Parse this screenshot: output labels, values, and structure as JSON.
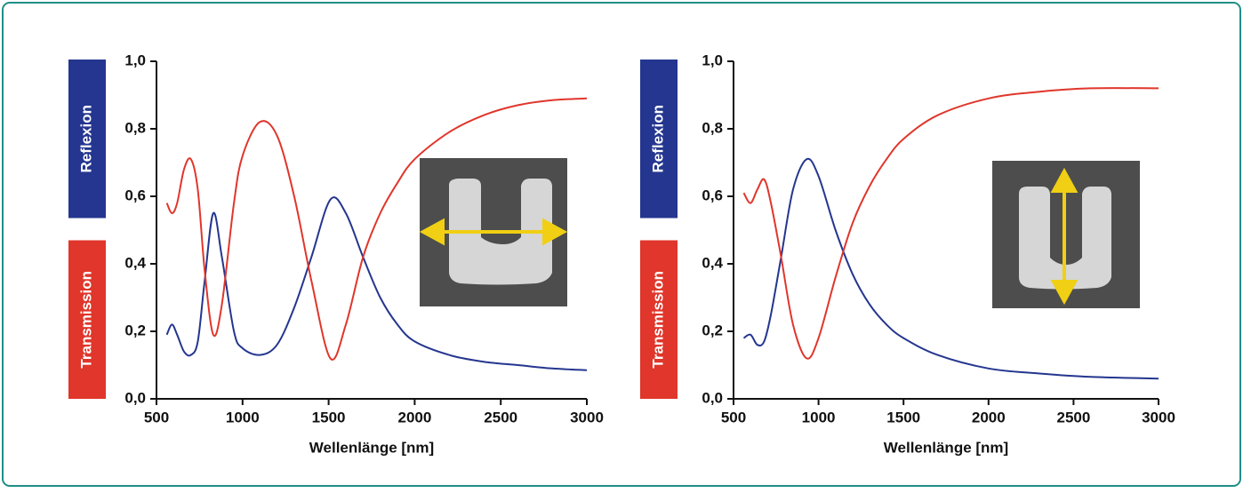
{
  "chart_data": [
    {
      "type": "line",
      "x": [
        560,
        590,
        620,
        660,
        700,
        740,
        780,
        830,
        880,
        950,
        1000,
        1100,
        1200,
        1300,
        1400,
        1510,
        1600,
        1700,
        1800,
        1900,
        2000,
        2200,
        2400,
        2600,
        2800,
        3000
      ],
      "series": [
        {
          "name": "Reflexion",
          "color": "#24368f",
          "values": [
            0.19,
            0.22,
            0.19,
            0.14,
            0.13,
            0.17,
            0.35,
            0.55,
            0.42,
            0.2,
            0.15,
            0.13,
            0.16,
            0.27,
            0.42,
            0.59,
            0.55,
            0.42,
            0.3,
            0.22,
            0.17,
            0.13,
            0.11,
            0.1,
            0.09,
            0.085
          ]
        },
        {
          "name": "Transmission",
          "color": "#e0362b",
          "values": [
            0.58,
            0.55,
            0.58,
            0.68,
            0.71,
            0.62,
            0.38,
            0.19,
            0.28,
            0.58,
            0.72,
            0.82,
            0.78,
            0.6,
            0.35,
            0.12,
            0.22,
            0.42,
            0.55,
            0.64,
            0.71,
            0.79,
            0.84,
            0.87,
            0.885,
            0.89
          ]
        }
      ],
      "xlabel": "Wellenlänge [nm]",
      "xlim": [
        500,
        3000
      ],
      "xticks": [
        500,
        1000,
        1500,
        2000,
        2500,
        3000
      ],
      "ylim": [
        0,
        1
      ],
      "yticks": [
        {
          "value": 0,
          "label": "0,0"
        },
        {
          "value": 0.2,
          "label": "0,2"
        },
        {
          "value": 0.4,
          "label": "0,4"
        },
        {
          "value": 0.6,
          "label": "0,6"
        },
        {
          "value": 0.8,
          "label": "0,8"
        },
        {
          "value": 1,
          "label": "1,0"
        }
      ]
    },
    {
      "type": "line",
      "x": [
        560,
        600,
        640,
        680,
        720,
        780,
        850,
        930,
        1000,
        1100,
        1200,
        1300,
        1400,
        1500,
        1700,
        2000,
        2300,
        2600,
        3000
      ],
      "series": [
        {
          "name": "Reflexion",
          "color": "#24368f",
          "values": [
            0.18,
            0.19,
            0.16,
            0.17,
            0.25,
            0.42,
            0.62,
            0.71,
            0.66,
            0.5,
            0.37,
            0.28,
            0.22,
            0.18,
            0.13,
            0.09,
            0.075,
            0.065,
            0.06
          ]
        },
        {
          "name": "Transmission",
          "color": "#e0362b",
          "values": [
            0.61,
            0.58,
            0.62,
            0.65,
            0.58,
            0.42,
            0.22,
            0.12,
            0.18,
            0.36,
            0.52,
            0.63,
            0.71,
            0.77,
            0.84,
            0.89,
            0.91,
            0.92,
            0.92
          ]
        }
      ],
      "xlabel": "Wellenlänge [nm]",
      "xlim": [
        500,
        3000
      ],
      "xticks": [
        500,
        1000,
        1500,
        2000,
        2500,
        3000
      ],
      "ylim": [
        0,
        1
      ],
      "yticks": [
        {
          "value": 0,
          "label": "0,0"
        },
        {
          "value": 0.2,
          "label": "0,2"
        },
        {
          "value": 0.4,
          "label": "0,4"
        },
        {
          "value": 0.6,
          "label": "0,6"
        },
        {
          "value": 0.8,
          "label": "0,8"
        },
        {
          "value": 1,
          "label": "1,0"
        }
      ]
    }
  ]
}
